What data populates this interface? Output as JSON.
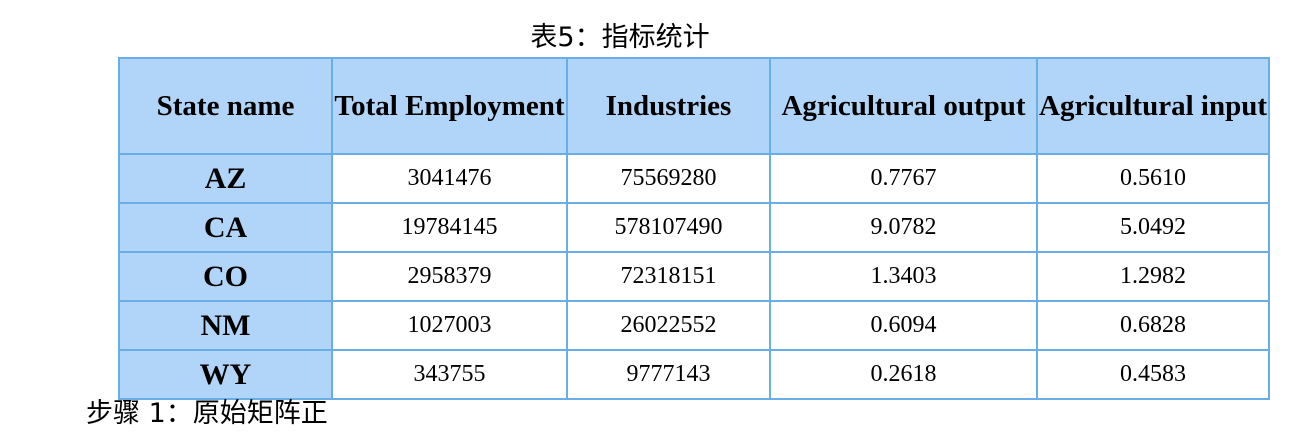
{
  "caption": "表5：指标统计",
  "table": {
    "headers": [
      "State name",
      "Total Employment",
      "Industries",
      "Agricultural output",
      "Agricultural input"
    ],
    "rows": [
      [
        "AZ",
        "3041476",
        "75569280",
        "0.7767",
        "0.5610"
      ],
      [
        "CA",
        "19784145",
        "578107490",
        "9.0782",
        "5.0492"
      ],
      [
        "CO",
        "2958379",
        "72318151",
        "1.3403",
        "1.2982"
      ],
      [
        "NM",
        "1027003",
        "26022552",
        "0.6094",
        "0.6828"
      ],
      [
        "WY",
        "343755",
        "9777143",
        "0.2618",
        "0.4583"
      ]
    ]
  },
  "next_heading": "步骤 1：原始矩阵正"
}
